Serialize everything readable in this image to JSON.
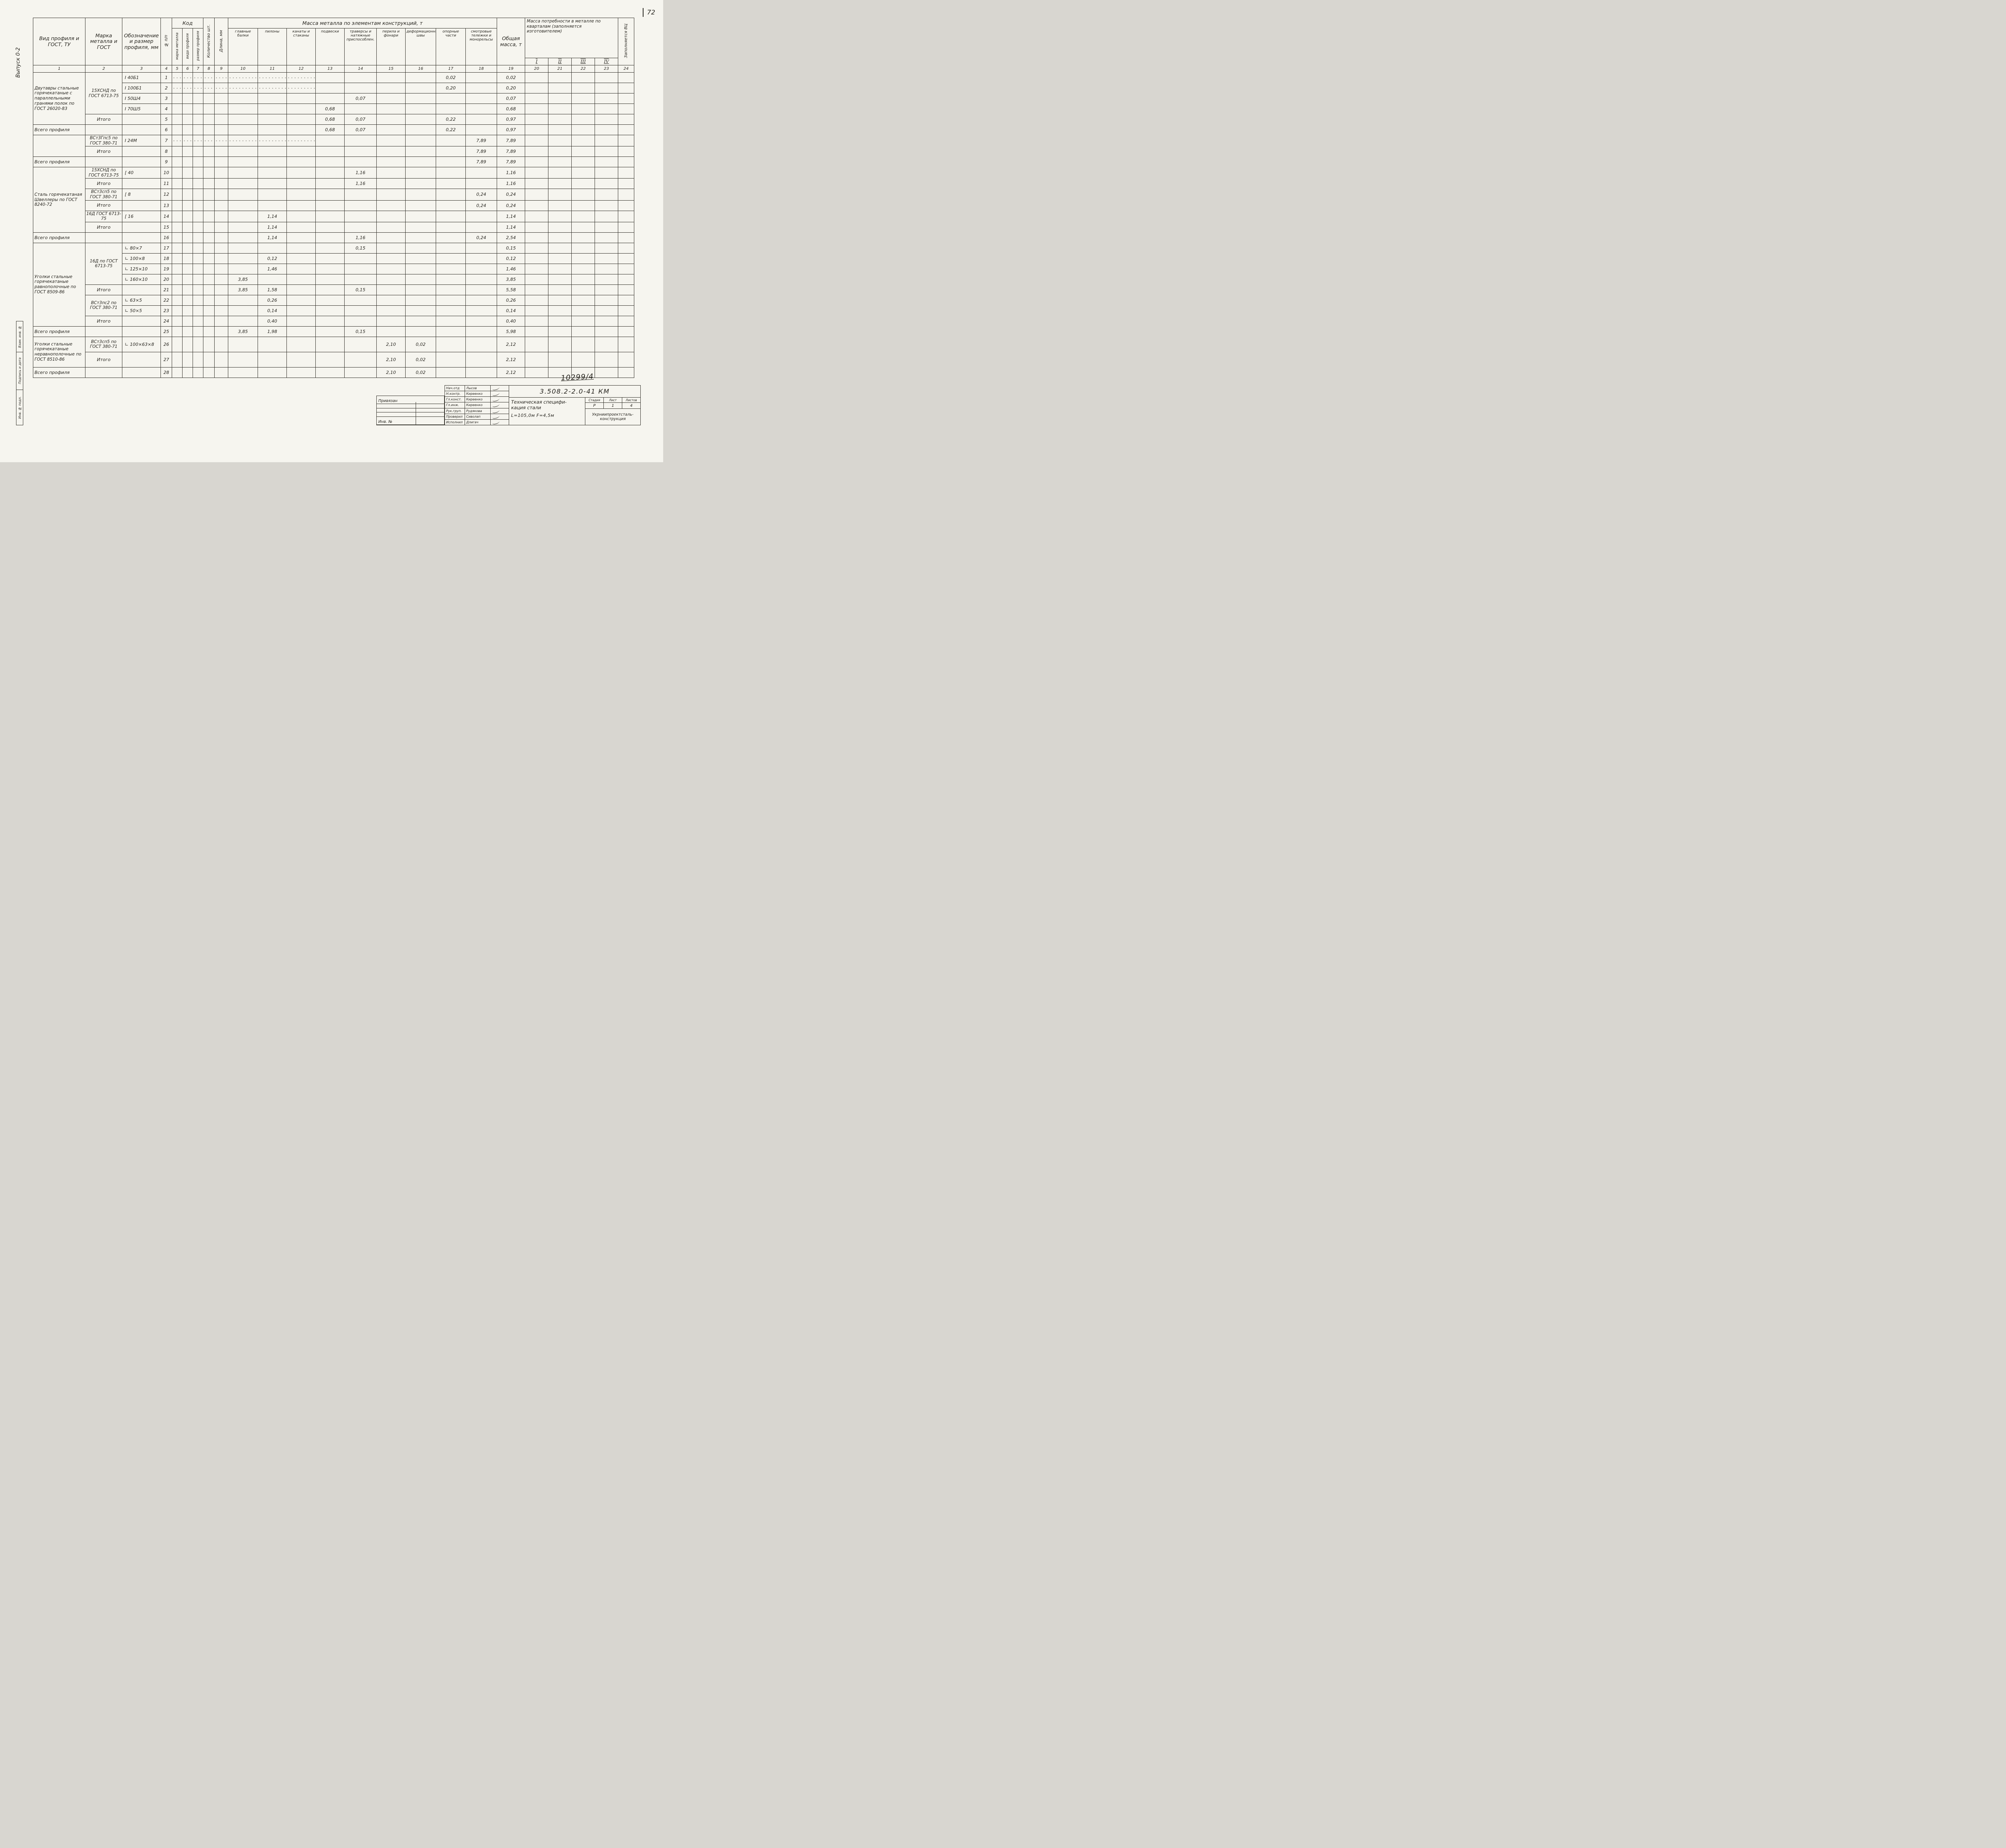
{
  "page": {
    "number": "72",
    "issue": "Выпуск 0-2",
    "doc_number": "10299/4",
    "side_stamps": [
      "Взам. инв. №",
      "Подпись и дата",
      "Инв. № подл."
    ]
  },
  "table": {
    "headers": {
      "profile_type": "Вид профиля и ГОСТ, ТУ",
      "steel_grade": "Марка металла и ГОСТ",
      "designation": "Обозначение и размер профиля, мм",
      "row_no": "№ п/п",
      "code_group": "Код",
      "code_cols": [
        "марка металла",
        "вида профиля",
        "размер профиля"
      ],
      "quantity": "Количество шт.",
      "length": "Длина, мм",
      "mass_group": "Масса металла по элементам конструкций, т",
      "mass_cols": [
        "главные балки",
        "пилоны",
        "канаты и стаканы",
        "подвески",
        "траверсы и натяжные приспособлен.",
        "перила и фонари",
        "деформационные швы",
        "опорные части",
        "смотровые тележки и монорельсы"
      ],
      "total_mass": "Общая масса, т",
      "quarters_group": "Масса потребности в металле по кварталам (заполняется изготовителем)",
      "quarters": [
        "I",
        "II",
        "III",
        "IV"
      ],
      "vc": "Заполняется ВЦ"
    },
    "col_numbers": [
      "1",
      "2",
      "3",
      "4",
      "5",
      "6",
      "7",
      "8",
      "9",
      "10",
      "11",
      "12",
      "13",
      "14",
      "15",
      "16",
      "17",
      "18",
      "19",
      "20",
      "21",
      "22",
      "23",
      "24"
    ],
    "rows": [
      {
        "n": "1",
        "c1": "Двутавры стальные горячекатаные с параллельными гранями полок по ГОСТ 26020-83",
        "s1": 5,
        "c2": "15ХСНД по ГОСТ 6713-75",
        "s2": 4,
        "c3": "I 40Б1",
        "v": {
          "17": "0,02",
          "19": "0,02"
        },
        "dots": true
      },
      {
        "n": "2",
        "c1": "SKIP",
        "c2": "SKIP",
        "c3": "I 100Б1",
        "v": {
          "17": "0,20",
          "19": "0,20"
        },
        "dots": true
      },
      {
        "n": "3",
        "c1": "SKIP",
        "c2": "SKIP",
        "c3": "I 50Ш4",
        "v": {
          "14": "0,07",
          "19": "0,07"
        }
      },
      {
        "n": "4",
        "c1": "SKIP",
        "c2": "SKIP",
        "c3": "I 70Ш5",
        "v": {
          "13": "0,68",
          "19": "0,68"
        }
      },
      {
        "n": "5",
        "c1": "SKIP",
        "c2": "Итого",
        "type": "itogo",
        "c3": "",
        "v": {
          "13": "0,68",
          "14": "0,07",
          "17": "0,22",
          "19": "0,97"
        }
      },
      {
        "n": "6",
        "c1": "Всего профиля",
        "type": "vsego",
        "c2": "",
        "c3": "",
        "v": {
          "13": "0,68",
          "14": "0,07",
          "17": "0,22",
          "19": "0,97"
        }
      },
      {
        "n": "7",
        "c1": "",
        "s1": 2,
        "c2": "ВСт3Гпс5 по ГОСТ 380-71",
        "c3": "I 24М",
        "v": {
          "18": "7,89",
          "19": "7,89"
        },
        "dots": true
      },
      {
        "n": "8",
        "c1": "SKIP",
        "c2": "Итого",
        "type": "itogo",
        "c3": "",
        "v": {
          "18": "7,89",
          "19": "7,89"
        }
      },
      {
        "n": "9",
        "c1": "Всего профиля",
        "type": "vsego",
        "c2": "",
        "c3": "",
        "v": {
          "18": "7,89",
          "19": "7,89"
        }
      },
      {
        "n": "10",
        "c1": "Сталь горячекатаная Швеллеры по ГОСТ 8240-72",
        "s1": 6,
        "c2": "15ХСНД по ГОСТ 6713-75",
        "c3": "[ 40",
        "v": {
          "14": "1,16",
          "19": "1,16"
        }
      },
      {
        "n": "11",
        "c1": "SKIP",
        "c2": "Итого",
        "type": "itogo",
        "c3": "",
        "v": {
          "14": "1,16",
          "19": "1,16"
        }
      },
      {
        "n": "12",
        "c1": "SKIP",
        "c2": "ВСт3сп5 по ГОСТ 380-71",
        "c3": "[ 8",
        "v": {
          "18": "0,24",
          "19": "0,24"
        }
      },
      {
        "n": "13",
        "c1": "SKIP",
        "c2": "Итого",
        "type": "itogo",
        "c3": "",
        "v": {
          "18": "0,24",
          "19": "0,24"
        }
      },
      {
        "n": "14",
        "c1": "SKIP",
        "c2": "16Д ГОСТ 6713-75",
        "c3": "[ 16",
        "v": {
          "11": "1,14",
          "19": "1,14"
        }
      },
      {
        "n": "15",
        "c1": "SKIP",
        "c2": "Итого",
        "type": "itogo",
        "c3": "",
        "v": {
          "11": "1,14",
          "19": "1,14"
        }
      },
      {
        "n": "16",
        "c1": "Всего профиля",
        "type": "vsego",
        "c2": "",
        "c3": "",
        "v": {
          "11": "1,14",
          "14": "1,16",
          "18": "0,24",
          "19": "2,54"
        }
      },
      {
        "n": "17",
        "c1": "Уголки стальные горячекатаные равнополочные по ГОСТ 8509-86",
        "s1": 8,
        "c2": "16Д по ГОСТ 6713-75",
        "s2": 4,
        "c3": "∟ 80×7",
        "v": {
          "14": "0,15",
          "19": "0,15"
        }
      },
      {
        "n": "18",
        "c1": "SKIP",
        "c2": "SKIP",
        "c3": "∟ 100×8",
        "v": {
          "11": "0,12",
          "19": "0,12"
        }
      },
      {
        "n": "19",
        "c1": "SKIP",
        "c2": "SKIP",
        "c3": "∟ 125×10",
        "v": {
          "11": "1,46",
          "19": "1,46"
        }
      },
      {
        "n": "20",
        "c1": "SKIP",
        "c2": "SKIP",
        "c3": "∟ 160×10",
        "v": {
          "10": "3,85",
          "19": "3,85"
        }
      },
      {
        "n": "21",
        "c1": "SKIP",
        "c2": "Итого",
        "type": "itogo",
        "c3": "",
        "v": {
          "10": "3,85",
          "11": "1,58",
          "14": "0,15",
          "19": "5,58"
        }
      },
      {
        "n": "22",
        "c1": "SKIP",
        "c2": "ВСт3пс2 по ГОСТ 380-71",
        "s2": 2,
        "c3": "∟ 63×5",
        "v": {
          "11": "0,26",
          "19": "0,26"
        }
      },
      {
        "n": "23",
        "c1": "SKIP",
        "c2": "SKIP",
        "c3": "∟ 50×5",
        "v": {
          "11": "0,14",
          "19": "0,14"
        }
      },
      {
        "n": "24",
        "c1": "SKIP",
        "c2": "Итого",
        "type": "itogo",
        "c3": "",
        "v": {
          "11": "0,40",
          "19": "0,40"
        }
      },
      {
        "n": "25",
        "c1": "Всего профиля",
        "type": "vsego",
        "c2": "",
        "c3": "",
        "v": {
          "10": "3,85",
          "11": "1,98",
          "14": "0,15",
          "19": "5,98"
        }
      },
      {
        "n": "26",
        "c1": "Уголки стальные горячекатаные неравнополочные по ГОСТ 8510-86",
        "s1": 2,
        "c2": "ВСт3сп5 по ГОСТ 380-71",
        "c3": "∟ 100×63×8",
        "v": {
          "15": "2,10",
          "16": "0,02",
          "19": "2,12"
        },
        "tall": true
      },
      {
        "n": "27",
        "c1": "SKIP",
        "c2": "Итого",
        "type": "itogo",
        "c3": "",
        "v": {
          "15": "2,10",
          "16": "0,02",
          "19": "2,12"
        },
        "tall": true
      },
      {
        "n": "28",
        "c1": "Всего профиля",
        "type": "vsego",
        "c2": "",
        "c3": "",
        "v": {
          "15": "2,10",
          "16": "0,02",
          "19": "2,12"
        }
      }
    ]
  },
  "privyazan": {
    "label": "Привязан",
    "inv": "Инв. №"
  },
  "title_block": {
    "doc_code": "3.508.2-2.0-41 КМ",
    "title_line1": "Техническая специфи-",
    "title_line2": "кация стали",
    "subtitle": "L=105,0м  F=4,5м",
    "stage_headers": [
      "Стадия",
      "Лист",
      "Листов"
    ],
    "stage_values": [
      "Р",
      "1",
      "4"
    ],
    "org_line1": "Укрниипроектсталь-",
    "org_line2": "конструкция",
    "signatures": [
      {
        "role": "Нач.отд",
        "name": "Лысов"
      },
      {
        "role": "Н.контр.",
        "name": "Киреенко"
      },
      {
        "role": "Гл.конст.",
        "name": "Киреенко"
      },
      {
        "role": "Гл.инж.",
        "name": "Киреенко"
      },
      {
        "role": "Рук.груп.",
        "name": "Рудякова"
      },
      {
        "role": "Проверил",
        "name": "Сиволап"
      },
      {
        "role": "Исполнил",
        "name": "Длигач"
      }
    ]
  }
}
